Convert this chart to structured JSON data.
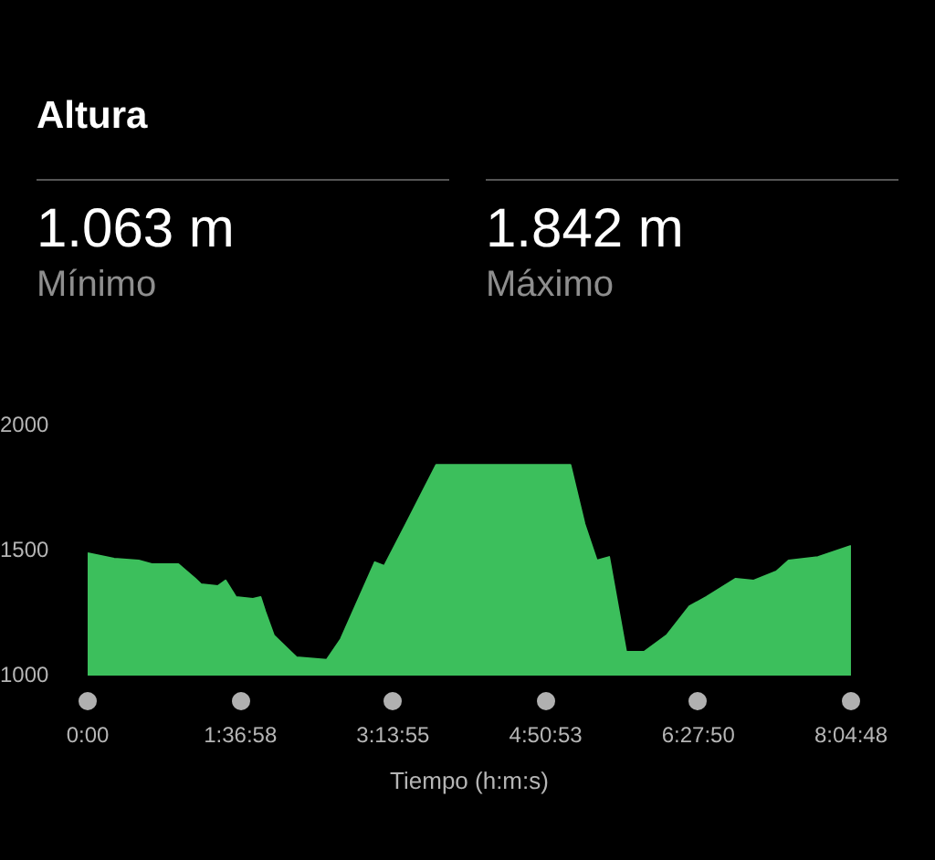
{
  "chart_data": {
    "type": "area",
    "title": "Altura",
    "xlabel": "Tiempo (h:m:s)",
    "annotations": [
      "1.063 m",
      "Mínimo",
      "1.842 m",
      "Máximo"
    ],
    "x": [
      0,
      0.28,
      0.54,
      0.68,
      0.96,
      1.14,
      1.2,
      1.38,
      1.46,
      1.57,
      1.75,
      1.83,
      1.88,
      1.97,
      2.07,
      2.21,
      2.53,
      2.68,
      3.04,
      3.14,
      3.36,
      3.69,
      5.11,
      5.26,
      5.39,
      5.52,
      5.7,
      5.89,
      6.13,
      6.37,
      6.55,
      6.86,
      7.05,
      7.29,
      7.42,
      7.73,
      8.08
    ],
    "series": [
      {
        "color": "#3cbf5c",
        "values": [
          1489,
          1467,
          1460,
          1445,
          1445,
          1387,
          1365,
          1358,
          1380,
          1314,
          1307,
          1314,
          1255,
          1161,
          1124,
          1073,
          1063,
          1146,
          1453,
          1438,
          1599,
          1842,
          1842,
          1606,
          1460,
          1474,
          1095,
          1095,
          1161,
          1277,
          1314,
          1387,
          1380,
          1416,
          1460,
          1474,
          1518
        ]
      }
    ],
    "xlim": [
      0,
      8.08
    ],
    "xticks": [
      {
        "value": 0,
        "label": "0:00"
      },
      {
        "value": 1.6161,
        "label": "1:36:58"
      },
      {
        "value": 3.2319,
        "label": "3:13:55"
      },
      {
        "value": 4.8481,
        "label": "4:50:53"
      },
      {
        "value": 6.4639,
        "label": "6:27:50"
      },
      {
        "value": 8.08,
        "label": "8:04:48"
      }
    ],
    "ylim": [
      1000,
      2000
    ],
    "yticks": [
      1000,
      1500,
      2000
    ],
    "grid": false,
    "legend": false
  }
}
